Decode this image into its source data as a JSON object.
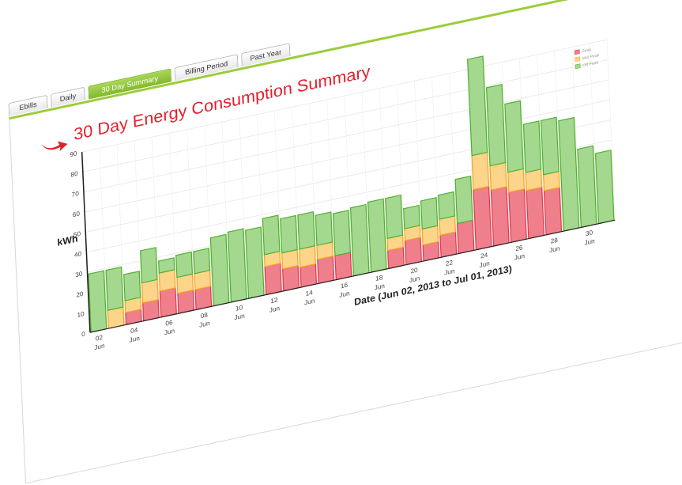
{
  "tabs": [
    {
      "label": "Ebills",
      "active": false
    },
    {
      "label": "Daily",
      "active": false
    },
    {
      "label": "30 Day Summary",
      "active": true
    },
    {
      "label": "Billing Period",
      "active": false
    },
    {
      "label": "Past Year",
      "active": false
    }
  ],
  "colors": {
    "title": "#e4202c",
    "peak": "#f07f8c",
    "peak_edge": "#e23a4d",
    "mid_peak": "#fdd58a",
    "mid_peak_edge": "#f5a623",
    "off_peak": "#a4d88e",
    "off_peak_edge": "#52b033",
    "tab_active": "#8cc43a"
  },
  "chart_data": {
    "type": "bar",
    "stacked": true,
    "title": "30 Day Energy Consumption Summary",
    "xlabel": "Date (Jun 02, 2013 to Jul 01, 2013)",
    "ylabel": "kWh",
    "ylim": [
      0,
      90
    ],
    "yticks": [
      0,
      10,
      20,
      30,
      40,
      50,
      60,
      70,
      80,
      90
    ],
    "grid": true,
    "legend_position": "top-right",
    "tick_labels": [
      {
        "day": "02",
        "month": "Jun"
      },
      {
        "day": "04",
        "month": "Jun"
      },
      {
        "day": "06",
        "month": "Jun"
      },
      {
        "day": "08",
        "month": "Jun"
      },
      {
        "day": "10",
        "month": "Jun"
      },
      {
        "day": "12",
        "month": "Jun"
      },
      {
        "day": "14",
        "month": "Jun"
      },
      {
        "day": "16",
        "month": "Jun"
      },
      {
        "day": "18",
        "month": "Jun"
      },
      {
        "day": "20",
        "month": "Jun"
      },
      {
        "day": "22",
        "month": "Jun"
      },
      {
        "day": "24",
        "month": "Jun"
      },
      {
        "day": "26",
        "month": "Jun"
      },
      {
        "day": "28",
        "month": "Jun"
      },
      {
        "day": "30",
        "month": "Jun"
      }
    ],
    "categories": [
      "Jun 02",
      "Jun 03",
      "Jun 04",
      "Jun 05",
      "Jun 06",
      "Jun 07",
      "Jun 08",
      "Jun 09",
      "Jun 10",
      "Jun 11",
      "Jun 12",
      "Jun 13",
      "Jun 14",
      "Jun 15",
      "Jun 16",
      "Jun 17",
      "Jun 18",
      "Jun 19",
      "Jun 20",
      "Jun 21",
      "Jun 22",
      "Jun 23",
      "Jun 24",
      "Jun 25",
      "Jun 26",
      "Jun 27",
      "Jun 28",
      "Jun 29",
      "Jun 30",
      "Jul 01"
    ],
    "series": [
      {
        "name": "Peak",
        "values": [
          0,
          0,
          6,
          9,
          13,
          10,
          10,
          0,
          0,
          0,
          14,
          11,
          10,
          12,
          12,
          0,
          0,
          9,
          12,
          8,
          11,
          15,
          30,
          28,
          25,
          24,
          22,
          0,
          0,
          0
        ]
      },
      {
        "name": "Mid Peak",
        "values": [
          0,
          9,
          6,
          10,
          9,
          8,
          8,
          0,
          0,
          0,
          6,
          8,
          9,
          7,
          0,
          0,
          0,
          6,
          6,
          8,
          8,
          0,
          17,
          12,
          10,
          9,
          8,
          0,
          0,
          0
        ]
      },
      {
        "name": "Off Peak",
        "values": [
          29,
          20,
          13,
          16,
          6,
          11,
          11,
          34,
          35,
          34,
          18,
          17,
          17,
          15,
          21,
          34,
          35,
          20,
          10,
          14,
          12,
          22,
          48,
          39,
          34,
          24,
          27,
          55,
          39,
          35
        ]
      }
    ]
  }
}
